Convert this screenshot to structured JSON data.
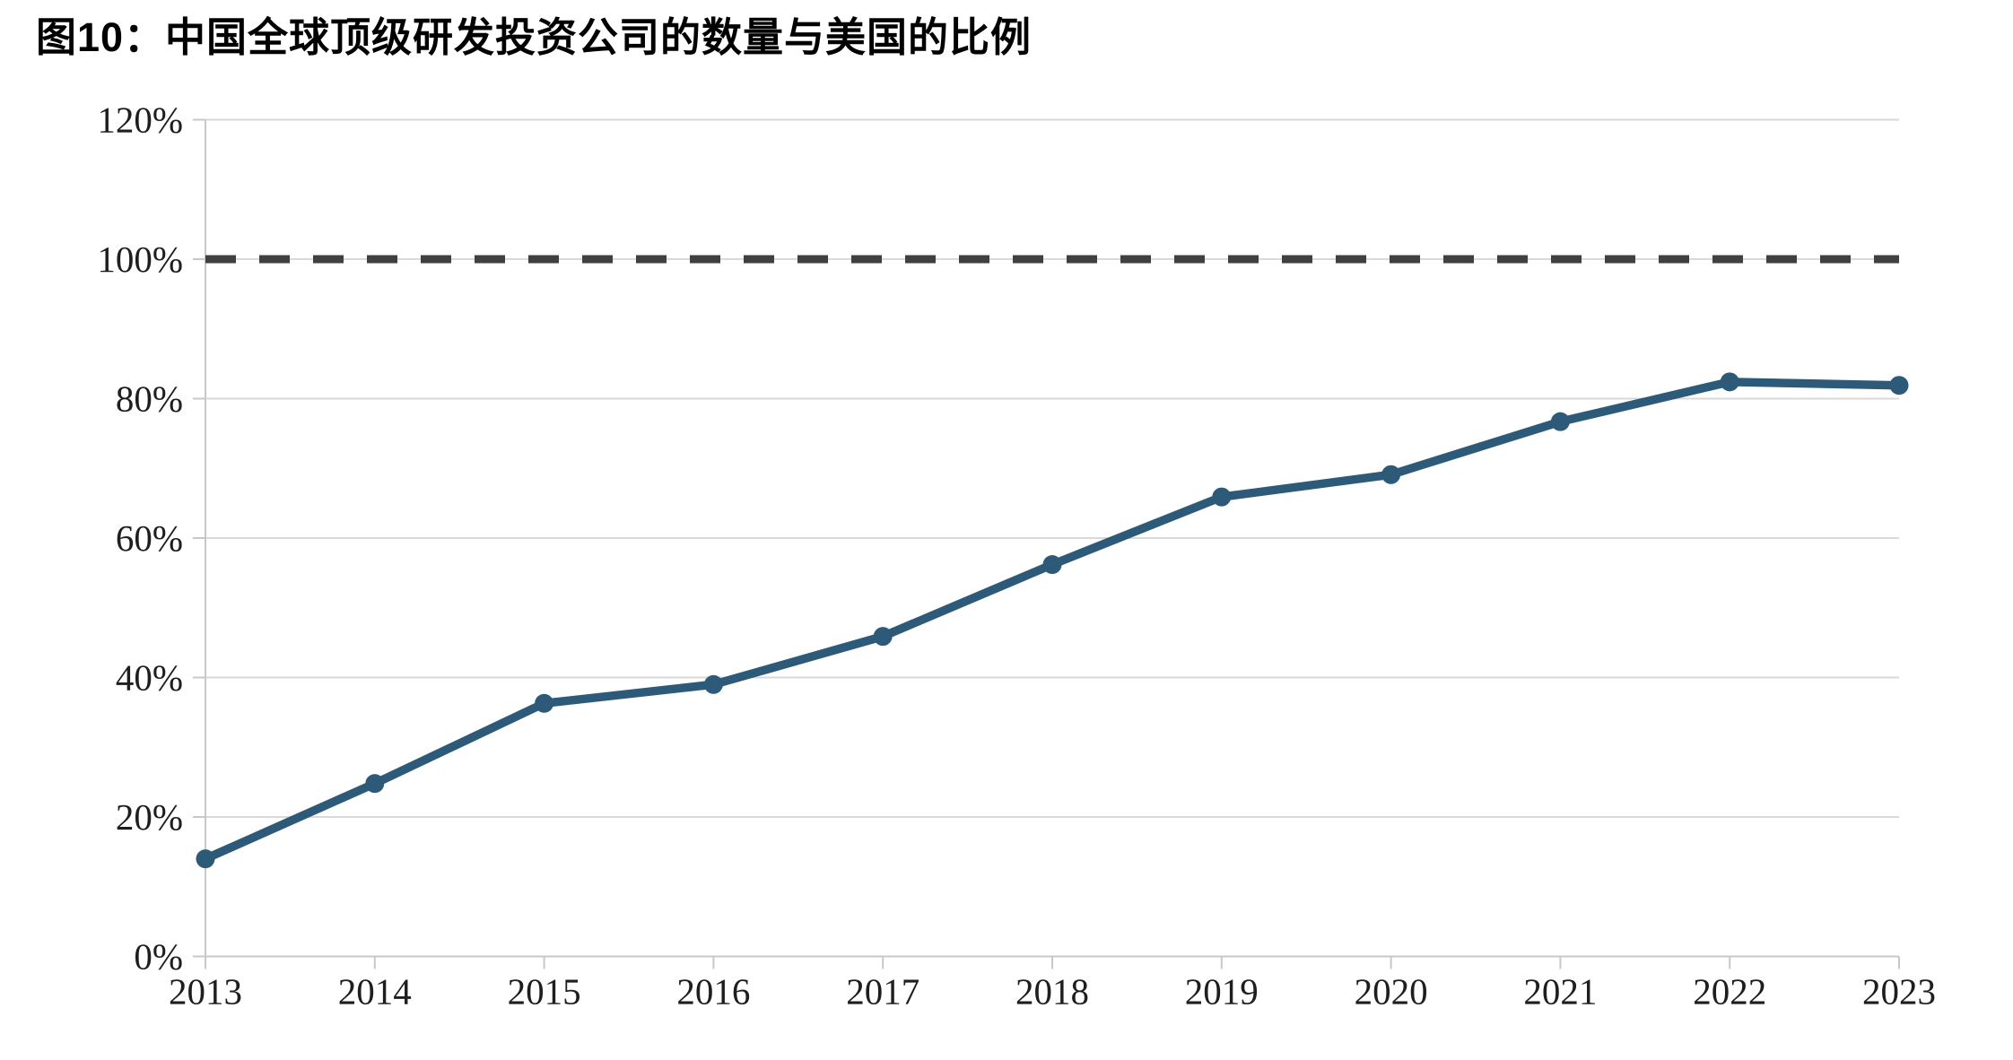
{
  "title": "图10：中国全球顶级研发投资公司的数量与美国的比例",
  "chart_data": {
    "type": "line",
    "title": "图10：中国全球顶级研发投资公司的数量与美国的比例",
    "categories": [
      "2013",
      "2014",
      "2015",
      "2016",
      "2017",
      "2018",
      "2019",
      "2020",
      "2021",
      "2022",
      "2023"
    ],
    "values": [
      14.0,
      24.8,
      36.3,
      39.0,
      45.9,
      56.2,
      65.9,
      69.1,
      76.7,
      82.4,
      81.9
    ],
    "reference_line": {
      "value": 100,
      "style": "dashed"
    },
    "ylim": [
      0,
      120
    ],
    "ytick_step": 20,
    "ytick_labels": [
      "0%",
      "20%",
      "40%",
      "60%",
      "80%",
      "100%",
      "120%"
    ],
    "xlabel": "",
    "ylabel": "",
    "grid": "horizontal",
    "legend": "none",
    "colors": {
      "series_line": "#2d5a78",
      "reference_dash": "#404040",
      "gridline": "#d9d9d9",
      "axis_line": "#c8c8c8",
      "tick_label": "#1e1e1e",
      "title": "#000000",
      "background": "#ffffff"
    }
  }
}
